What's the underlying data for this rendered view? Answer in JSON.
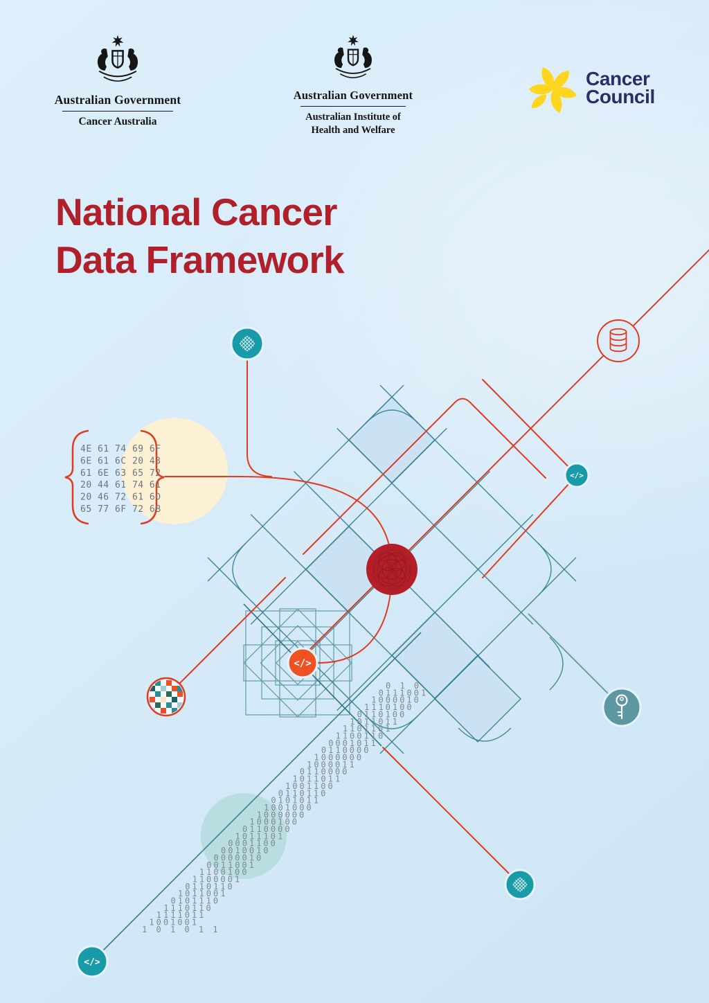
{
  "header": {
    "cancer_australia": {
      "gov_label": "Australian Government",
      "dept_label": "Cancer Australia"
    },
    "aihw": {
      "gov_label": "Australian Government",
      "dept_line1": "Australian Institute of",
      "dept_line2": "Health and Welfare"
    },
    "cancer_council": {
      "name_line1": "Cancer",
      "name_line2": "Council"
    }
  },
  "title": {
    "line1": "National Cancer",
    "line2": "Data Framework"
  },
  "artwork": {
    "hex_lines": [
      "4E 61 74 69 6F",
      "6E 61 6C 20 43",
      "61 6E 63 65 72",
      "20 44 61 74 61",
      "20 46 72 61 6D",
      "65 77 6F 72 6B"
    ],
    "binary_lines": [
      "0 1 0",
      "0111001",
      "1000010",
      "1110100",
      "0110100",
      "1011011",
      "1101101",
      "1100110",
      "0001011",
      "0110000",
      "1000000",
      "1000011",
      "0110000",
      "1011011",
      "1001100",
      "0110110",
      "0101011",
      "1001000",
      "1000000",
      "1000100",
      "0110000",
      "1011101",
      "0001100",
      "0010010",
      "0000010",
      "0011001",
      "1100100",
      "1100001",
      "0110110",
      "1011001",
      "0101110",
      "1110110",
      "1111011",
      "1001001",
      "1 0 1 0 1 1"
    ],
    "code_glyph": "</>"
  },
  "colors": {
    "accent_red": "#e03a20",
    "deep_red": "#b0202a",
    "teal": "#189aa8",
    "grid_teal": "#378092",
    "muted_teal": "#5d98a2",
    "navy": "#2b2d64",
    "daffodil_yellow": "#ffd51e",
    "cream": "#fcf1d4",
    "light_teal": "#b7dcde",
    "binary_gray": "#7d8a91"
  }
}
